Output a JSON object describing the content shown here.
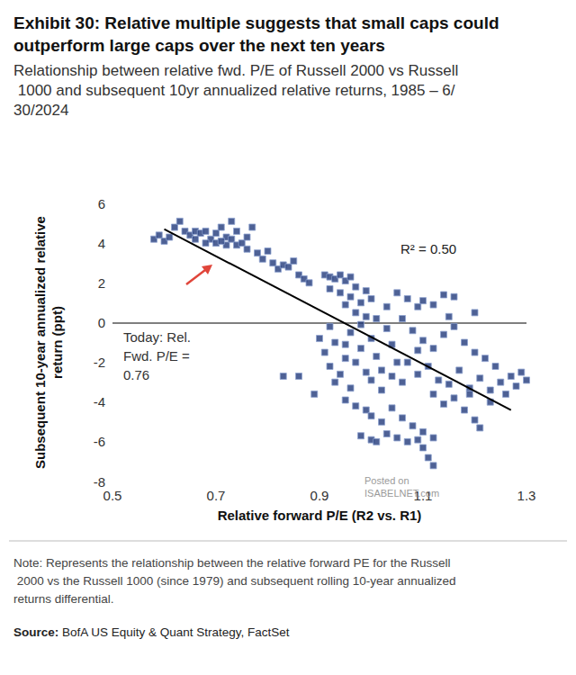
{
  "chart_data": {
    "type": "scatter",
    "title": "Exhibit 30: Relative multiple suggests that small caps could outperform large caps over the next ten years",
    "subtitle": "Relationship between relative fwd. P/E of Russell 2000 vs Russell 1000 and subsequent 10yr annualized relative returns, 1985 – 6/30/2024",
    "x_label": "Relative forward P/E (R2 vs. R1)",
    "y_label": "Subsequent 10-year annualized relative return (ppt)",
    "x": [
      0.58,
      0.59,
      0.6,
      0.61,
      0.62,
      0.63,
      0.64,
      0.65,
      0.66,
      0.67,
      0.68,
      0.69,
      0.7,
      0.7,
      0.71,
      0.72,
      0.72,
      0.73,
      0.73,
      0.74,
      0.74,
      0.75,
      0.76,
      0.76,
      0.71,
      0.66,
      0.68,
      0.77,
      0.78,
      0.79,
      0.8,
      0.81,
      0.82,
      0.83,
      0.84,
      0.85,
      0.86,
      0.87,
      0.88,
      0.83,
      0.86,
      0.89,
      0.91,
      0.92,
      0.93,
      0.94,
      0.95,
      0.96,
      0.97,
      0.92,
      0.94,
      0.96,
      0.98,
      0.99,
      1.0,
      0.95,
      0.97,
      0.99,
      0.9,
      0.91,
      0.92,
      0.93,
      0.94,
      0.95,
      0.96,
      0.97,
      0.98,
      0.99,
      1.0,
      1.01,
      1.02,
      1.03,
      1.04,
      1.05,
      0.93,
      0.96,
      0.92,
      0.95,
      0.98,
      1.0,
      1.02,
      0.95,
      0.97,
      0.99,
      1.0,
      1.02,
      1.03,
      1.05,
      1.07,
      1.09,
      1.1,
      1.11,
      1.12,
      1.04,
      1.06,
      1.08,
      1.1,
      1.12,
      0.98,
      1.0,
      1.01,
      1.05,
      1.07,
      1.09,
      1.1,
      1.12,
      1.14,
      1.16,
      1.06,
      1.08,
      1.1,
      1.12,
      1.14,
      1.16,
      1.18,
      1.2,
      1.07,
      1.09,
      1.11,
      1.13,
      1.15,
      1.17,
      1.19,
      1.21,
      1.23,
      1.25,
      1.27,
      1.29,
      1.22,
      1.24,
      1.12,
      1.14,
      1.16,
      1.18,
      1.2,
      1.21,
      1.19,
      1.23,
      1.26,
      1.28,
      1.3,
      1.06,
      1.04,
      1.09,
      1.15,
      1.2,
      1.03,
      1.01
    ],
    "values": [
      4.2,
      4.4,
      4.1,
      4.3,
      4.8,
      5.1,
      4.6,
      4.4,
      4.6,
      4.5,
      4.6,
      4.2,
      4.5,
      4.0,
      4.8,
      4.3,
      3.9,
      5.1,
      4.2,
      3.9,
      4.6,
      4.0,
      4.3,
      3.7,
      4.1,
      4.2,
      4.0,
      4.8,
      3.5,
      3.2,
      3.6,
      3.0,
      2.7,
      2.9,
      2.8,
      3.1,
      2.4,
      2.2,
      2.0,
      -2.7,
      -2.7,
      -3.6,
      2.4,
      2.3,
      2.2,
      2.4,
      2.1,
      2.3,
      1.8,
      1.7,
      1.5,
      1.3,
      1.0,
      1.6,
      1.2,
      0.9,
      0.5,
      0.3,
      -0.8,
      -1.5,
      -2.2,
      -1.0,
      -2.6,
      -1.8,
      -0.5,
      -2.0,
      -1.3,
      -2.5,
      -0.8,
      -1.7,
      -2.4,
      -0.3,
      -1.1,
      -2.0,
      -3.0,
      -3.3,
      -0.2,
      -1.1,
      -0.1,
      -2.9,
      -3.4,
      -3.9,
      -4.2,
      -4.4,
      -4.7,
      -5.0,
      -5.6,
      -5.8,
      -6.0,
      -5.9,
      -6.3,
      -6.8,
      -7.2,
      -4.3,
      -4.8,
      -5.2,
      -5.5,
      -5.8,
      -5.7,
      -5.9,
      -6.0,
      1.5,
      1.2,
      0.8,
      1.1,
      0.9,
      1.4,
      1.3,
      0.2,
      -0.4,
      -0.9,
      -1.3,
      -0.6,
      -0.2,
      -1.0,
      -1.5,
      -2.0,
      -2.6,
      -2.2,
      -2.9,
      -3.1,
      -2.4,
      -3.3,
      -2.8,
      -3.4,
      -3.0,
      -2.7,
      -2.5,
      -1.8,
      -2.2,
      -3.6,
      -4.1,
      -3.8,
      -4.4,
      -4.9,
      -5.3,
      -3.6,
      -4.0,
      -3.6,
      -3.2,
      -2.9,
      -3.0,
      -2.7,
      -1.4,
      0.3,
      0.5,
      0.8,
      0.2
    ],
    "color": "#22397a",
    "marker": "square",
    "trend_line": {
      "x": [
        0.6,
        1.27
      ],
      "values": [
        4.7,
        -4.4
      ],
      "color": "#000000"
    },
    "reference_line": 0,
    "xlim": [
      0.5,
      1.3
    ],
    "xticks": [
      0.5,
      0.7,
      0.9,
      1.1,
      1.3
    ],
    "ylim": [
      -8,
      6
    ],
    "yticks": [
      -8,
      -6,
      -4,
      -2,
      0,
      2,
      4,
      6
    ],
    "grid": false,
    "annotations": [
      {
        "text": [
          "R² = 0.50"
        ]
      },
      {
        "text": [
          "Today: Rel.",
          "Fwd. P/E =",
          "0.76"
        ]
      }
    ],
    "watermark": [
      "Posted on",
      "ISABELNET.com"
    ],
    "note": "Note: Represents the relationship between the relative forward PE for the Russell 2000 vs the Russell 1000 (since 1979) and subsequent rolling 10-year annualized returns differential.",
    "source": "Source: BofA US Equity & Quant Strategy, FactSet"
  }
}
